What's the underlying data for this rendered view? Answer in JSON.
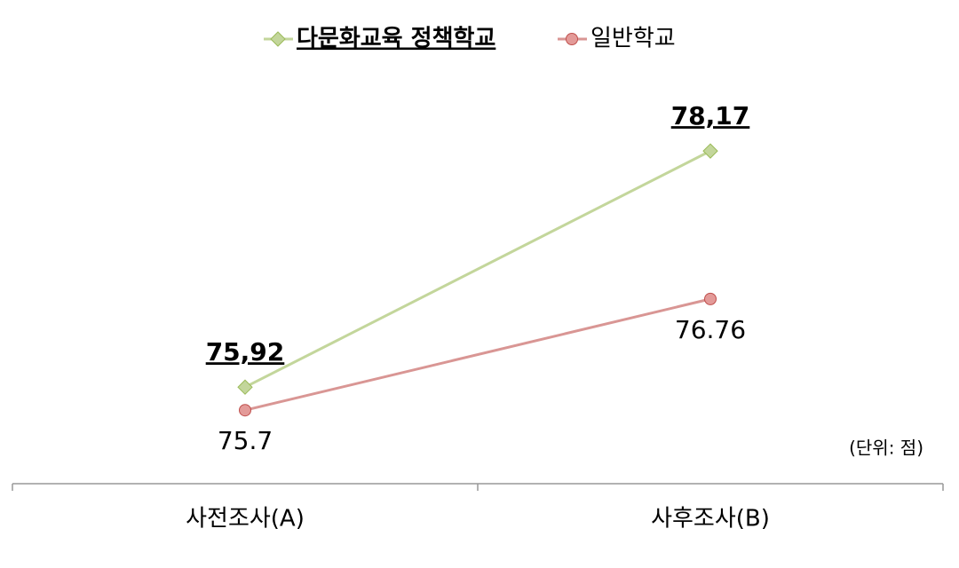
{
  "chart_data": {
    "type": "line",
    "categories": [
      "사전조사(A)",
      "사후조사(B)"
    ],
    "series": [
      {
        "name": "다문화교육 정책학교",
        "color": "#c3d69b",
        "marker": "diamond",
        "values": [
          75.92,
          78.17
        ],
        "value_labels": [
          "75,92",
          "78,17"
        ]
      },
      {
        "name": "일반학교",
        "color": "#d99694",
        "marker": "circle",
        "values": [
          75.7,
          76.76
        ]
      }
    ],
    "ylim": [
      75,
      79
    ],
    "annotation": "(단위: 점)",
    "legend": "top"
  }
}
